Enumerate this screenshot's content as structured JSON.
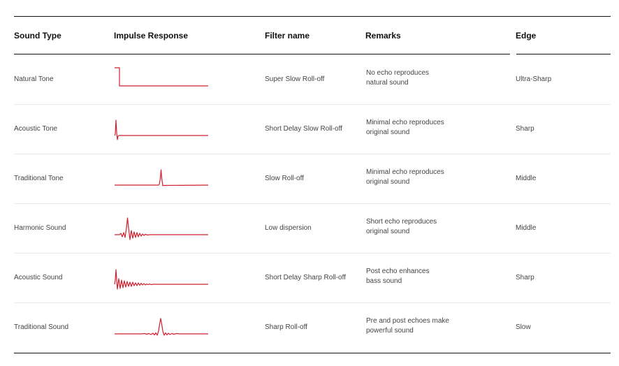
{
  "table": {
    "headers": {
      "sound_type": "Sound Type",
      "impulse_response": "Impulse Response",
      "filter_name": "Filter name",
      "remarks": "Remarks",
      "edge": "Edge"
    },
    "rows": [
      {
        "sound_type": "Natural Tone",
        "impulse_shape": "step-drop",
        "filter_name": "Super Slow Roll-off",
        "remarks_line1": "No echo reproduces",
        "remarks_line2": "natural sound",
        "edge": "Ultra-Sharp"
      },
      {
        "sound_type": "Acoustic Tone",
        "impulse_shape": "early-spike",
        "filter_name": "Short Delay Slow Roll-off",
        "remarks_line1": "Minimal echo reproduces",
        "remarks_line2": "original sound",
        "edge": "Sharp"
      },
      {
        "sound_type": "Traditional Tone",
        "impulse_shape": "centered-spike",
        "filter_name": "Slow Roll-off",
        "remarks_line1": "Minimal echo reproduces",
        "remarks_line2": "original sound",
        "edge": "Middle"
      },
      {
        "sound_type": "Harmonic Sound",
        "impulse_shape": "early-ringing-both",
        "filter_name": "Low dispersion",
        "remarks_line1": "Short echo reproduces",
        "remarks_line2": "original sound",
        "edge": "Middle"
      },
      {
        "sound_type": "Acoustic Sound",
        "impulse_shape": "spike-post-ringing",
        "filter_name": "Short Delay Sharp Roll-off",
        "remarks_line1": "Post echo enhances",
        "remarks_line2": "bass sound",
        "edge": "Sharp"
      },
      {
        "sound_type": "Traditional Sound",
        "impulse_shape": "sinc-symmetric",
        "filter_name": "Sharp Roll-off",
        "remarks_line1": "Pre and post echoes make",
        "remarks_line2": "powerful sound",
        "edge": "Slow"
      }
    ]
  },
  "colors": {
    "impulse_stroke": "#d0202e",
    "rule": "#111111",
    "row_separator": "#e9e9e9",
    "text": "#444444"
  }
}
